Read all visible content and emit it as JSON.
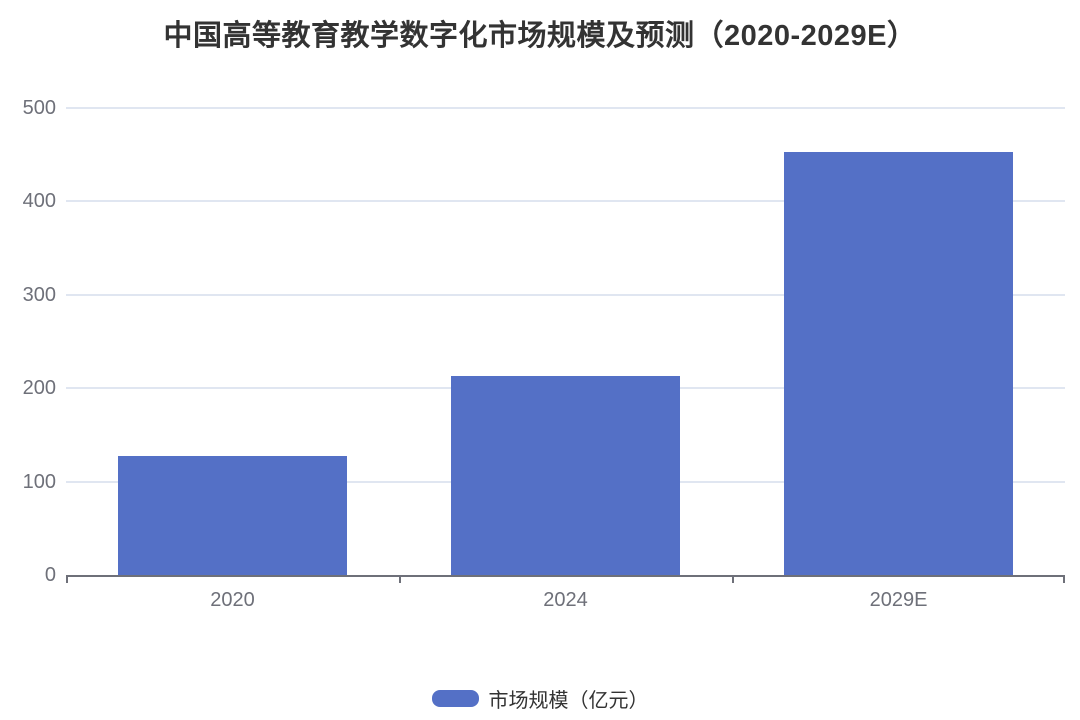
{
  "chart_data": {
    "type": "bar",
    "title": "中国高等教育教学数字化市场规模及预测（2020-2029E）",
    "categories": [
      "2020",
      "2024",
      "2029E"
    ],
    "series": [
      {
        "name": "市场规模（亿元）",
        "values": [
          127,
          213,
          453
        ],
        "color": "#5470C6"
      }
    ],
    "xlabel": "",
    "ylabel": "",
    "ylim": [
      0,
      500
    ],
    "ytick_interval": 100,
    "yticks": [
      0,
      100,
      200,
      300,
      400,
      500
    ],
    "grid": true,
    "legend_position": "bottom",
    "legend": [
      "市场规模（亿元）"
    ]
  },
  "style": {
    "bar_color": "#5470C6",
    "gridline_color": "#E0E6F1",
    "axis_color": "#6E7079",
    "tick_text_color": "#6E7079",
    "title_color": "#333333",
    "legend_text_color": "#333333",
    "background": "#FFFFFF"
  }
}
